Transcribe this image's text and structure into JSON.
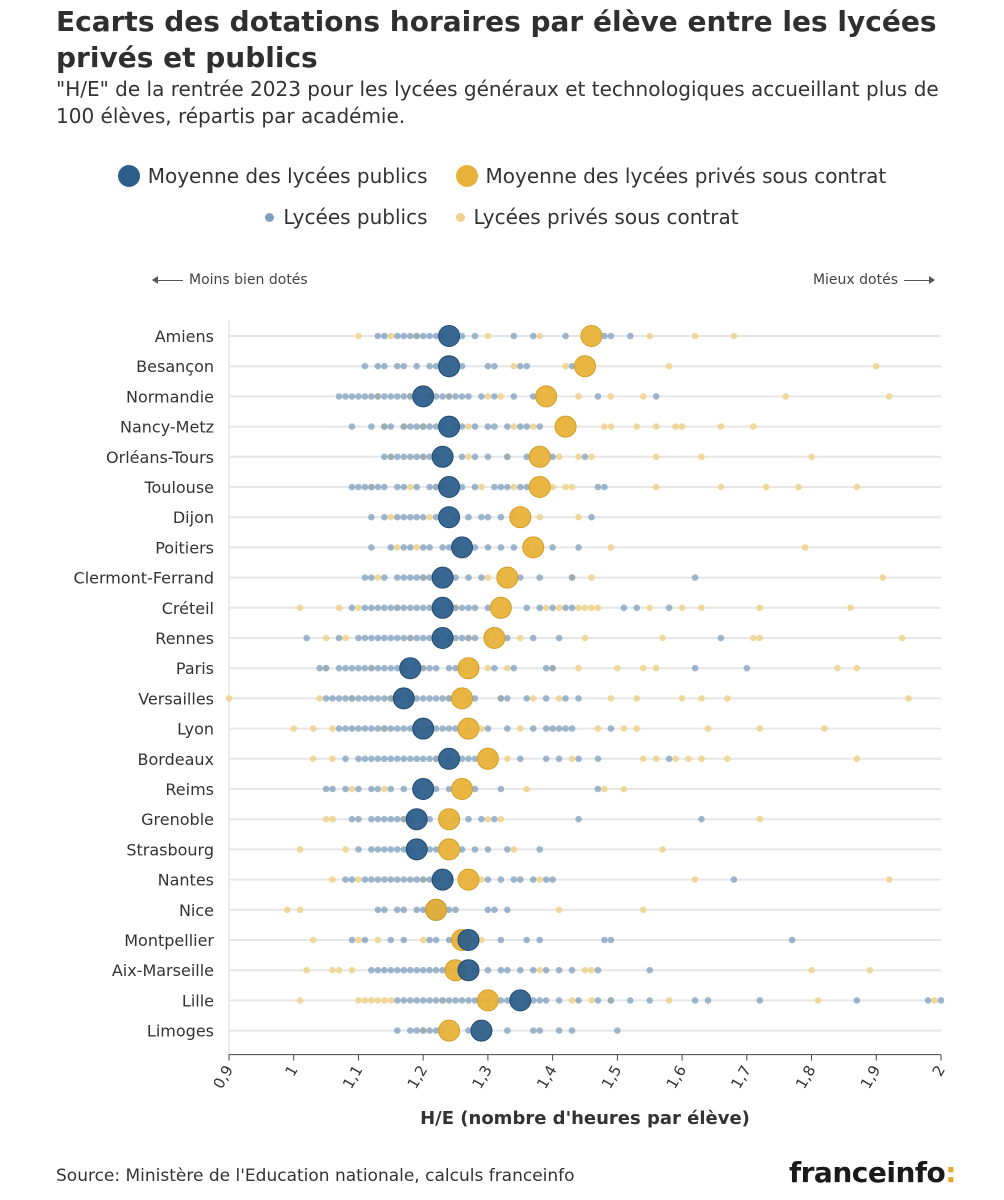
{
  "header": {
    "title": "Ecarts des dotations horaires par élève entre les lycées privés et publics",
    "subtitle": "\"H/E\" de la rentrée 2023 pour les lycées généraux et technologiques accueillant plus de 100 élèves, répartis par académie."
  },
  "legend": {
    "mean_public": "Moyenne des lycées publics",
    "mean_private": "Moyenne des lycées privés sous contrat",
    "public": "Lycées publics",
    "private": "Lycées privés sous contrat"
  },
  "annotations": {
    "left": "Moins bien dotés",
    "right": "Mieux dotés"
  },
  "colors": {
    "public_mean": "#2d5f8b",
    "private_mean": "#e8b23a",
    "public_dot": "#7f9fbe",
    "private_dot": "#efd18a",
    "gridline": "#e6e6e6"
  },
  "footer": {
    "source": "Source: Ministère de l'Education nationale, calculs franceinfo",
    "logo_text": "franceinfo",
    "logo_mark": ":"
  },
  "chart_data": {
    "type": "scatter",
    "xlabel": "H/E (nombre d'heures par élève)",
    "xlim": [
      0.9,
      2.0
    ],
    "x_ticks": [
      0.9,
      1.0,
      1.1,
      1.2,
      1.3,
      1.4,
      1.5,
      1.6,
      1.7,
      1.8,
      1.9,
      2.0
    ],
    "x_tick_labels": [
      "0,9",
      "1",
      "1,1",
      "1,2",
      "1,3",
      "1,4",
      "1,5",
      "1,6",
      "1,7",
      "1,8",
      "1,9",
      "2"
    ],
    "academies": [
      {
        "name": "Amiens",
        "mean_public": 1.24,
        "mean_private": 1.46,
        "public": [
          1.13,
          1.14,
          1.16,
          1.17,
          1.18,
          1.19,
          1.2,
          1.21,
          1.22,
          1.23,
          1.25,
          1.26,
          1.28,
          1.34,
          1.37,
          1.42,
          1.48,
          1.49,
          1.52
        ],
        "private": [
          1.1,
          1.15,
          1.19,
          1.24,
          1.3,
          1.38,
          1.45,
          1.55,
          1.62,
          1.68
        ]
      },
      {
        "name": "Besançon",
        "mean_public": 1.24,
        "mean_private": 1.45,
        "public": [
          1.11,
          1.13,
          1.14,
          1.16,
          1.17,
          1.19,
          1.21,
          1.22,
          1.26,
          1.3,
          1.31,
          1.35,
          1.36,
          1.43
        ],
        "private": [
          1.34,
          1.42,
          1.58,
          1.9
        ]
      },
      {
        "name": "Normandie",
        "mean_public": 1.2,
        "mean_private": 1.39,
        "public": [
          1.07,
          1.08,
          1.09,
          1.1,
          1.11,
          1.12,
          1.13,
          1.14,
          1.15,
          1.16,
          1.17,
          1.18,
          1.19,
          1.21,
          1.22,
          1.23,
          1.24,
          1.25,
          1.26,
          1.27,
          1.29,
          1.31,
          1.34,
          1.37,
          1.47,
          1.56
        ],
        "private": [
          1.13,
          1.18,
          1.24,
          1.3,
          1.32,
          1.38,
          1.4,
          1.44,
          1.49,
          1.54,
          1.76,
          1.92
        ]
      },
      {
        "name": "Nancy-Metz",
        "mean_public": 1.24,
        "mean_private": 1.42,
        "public": [
          1.09,
          1.12,
          1.14,
          1.15,
          1.17,
          1.18,
          1.19,
          1.2,
          1.21,
          1.22,
          1.23,
          1.25,
          1.26,
          1.28,
          1.3,
          1.31,
          1.33,
          1.35,
          1.36,
          1.38
        ],
        "private": [
          1.14,
          1.17,
          1.2,
          1.27,
          1.34,
          1.37,
          1.48,
          1.49,
          1.53,
          1.56,
          1.59,
          1.6,
          1.66,
          1.71
        ]
      },
      {
        "name": "Orléans-Tours",
        "mean_public": 1.23,
        "mean_private": 1.38,
        "public": [
          1.14,
          1.15,
          1.16,
          1.17,
          1.18,
          1.19,
          1.2,
          1.21,
          1.22,
          1.24,
          1.26,
          1.28,
          1.3,
          1.33,
          1.36,
          1.4,
          1.45
        ],
        "private": [
          1.15,
          1.2,
          1.27,
          1.33,
          1.41,
          1.44,
          1.46,
          1.56,
          1.63,
          1.8
        ]
      },
      {
        "name": "Toulouse",
        "mean_public": 1.24,
        "mean_private": 1.38,
        "public": [
          1.09,
          1.1,
          1.11,
          1.12,
          1.13,
          1.14,
          1.16,
          1.17,
          1.19,
          1.21,
          1.22,
          1.23,
          1.26,
          1.28,
          1.31,
          1.32,
          1.33,
          1.35,
          1.36,
          1.47,
          1.48
        ],
        "private": [
          1.12,
          1.18,
          1.22,
          1.29,
          1.34,
          1.37,
          1.4,
          1.42,
          1.43,
          1.56,
          1.66,
          1.73,
          1.78,
          1.87
        ]
      },
      {
        "name": "Dijon",
        "mean_public": 1.24,
        "mean_private": 1.35,
        "public": [
          1.12,
          1.14,
          1.16,
          1.17,
          1.18,
          1.19,
          1.2,
          1.22,
          1.25,
          1.27,
          1.29,
          1.3,
          1.32,
          1.34,
          1.46
        ],
        "private": [
          1.15,
          1.21,
          1.38,
          1.44
        ]
      },
      {
        "name": "Poitiers",
        "mean_public": 1.26,
        "mean_private": 1.37,
        "public": [
          1.12,
          1.15,
          1.17,
          1.18,
          1.2,
          1.21,
          1.23,
          1.24,
          1.25,
          1.28,
          1.3,
          1.32,
          1.34,
          1.36,
          1.4,
          1.44
        ],
        "private": [
          1.16,
          1.19,
          1.49,
          1.79
        ]
      },
      {
        "name": "Clermont-Ferrand",
        "mean_public": 1.23,
        "mean_private": 1.33,
        "public": [
          1.11,
          1.12,
          1.14,
          1.16,
          1.17,
          1.18,
          1.19,
          1.2,
          1.21,
          1.22,
          1.25,
          1.27,
          1.29,
          1.35,
          1.38,
          1.43,
          1.62
        ],
        "private": [
          1.13,
          1.2,
          1.3,
          1.43,
          1.46,
          1.91
        ]
      },
      {
        "name": "Créteil",
        "mean_public": 1.23,
        "mean_private": 1.32,
        "public": [
          1.09,
          1.11,
          1.12,
          1.13,
          1.14,
          1.15,
          1.16,
          1.17,
          1.18,
          1.19,
          1.2,
          1.21,
          1.22,
          1.24,
          1.25,
          1.26,
          1.27,
          1.28,
          1.3,
          1.36,
          1.38,
          1.4,
          1.42,
          1.43,
          1.51,
          1.53,
          1.58
        ],
        "private": [
          1.01,
          1.07,
          1.1,
          1.16,
          1.25,
          1.33,
          1.39,
          1.41,
          1.44,
          1.45,
          1.46,
          1.47,
          1.55,
          1.6,
          1.63,
          1.72,
          1.86
        ]
      },
      {
        "name": "Rennes",
        "mean_public": 1.23,
        "mean_private": 1.31,
        "public": [
          1.02,
          1.07,
          1.1,
          1.11,
          1.12,
          1.13,
          1.14,
          1.15,
          1.16,
          1.17,
          1.18,
          1.19,
          1.2,
          1.21,
          1.22,
          1.24,
          1.25,
          1.26,
          1.27,
          1.28,
          1.3,
          1.33,
          1.37,
          1.41,
          1.66
        ],
        "private": [
          1.05,
          1.08,
          1.18,
          1.27,
          1.35,
          1.45,
          1.57,
          1.71,
          1.72,
          1.94
        ]
      },
      {
        "name": "Paris",
        "mean_public": 1.18,
        "mean_private": 1.27,
        "public": [
          1.04,
          1.05,
          1.07,
          1.08,
          1.09,
          1.1,
          1.11,
          1.12,
          1.13,
          1.14,
          1.15,
          1.16,
          1.17,
          1.19,
          1.2,
          1.21,
          1.22,
          1.24,
          1.25,
          1.26,
          1.28,
          1.31,
          1.34,
          1.39,
          1.4,
          1.62,
          1.7
        ],
        "private": [
          1.05,
          1.12,
          1.2,
          1.3,
          1.33,
          1.4,
          1.44,
          1.5,
          1.54,
          1.56,
          1.84,
          1.87
        ]
      },
      {
        "name": "Versailles",
        "mean_public": 1.17,
        "mean_private": 1.26,
        "public": [
          1.05,
          1.06,
          1.07,
          1.08,
          1.09,
          1.1,
          1.11,
          1.12,
          1.13,
          1.14,
          1.15,
          1.16,
          1.18,
          1.19,
          1.2,
          1.21,
          1.22,
          1.23,
          1.24,
          1.27,
          1.28,
          1.32,
          1.33,
          1.36,
          1.39,
          1.42,
          1.44
        ],
        "private": [
          0.9,
          1.04,
          1.09,
          1.15,
          1.24,
          1.32,
          1.37,
          1.41,
          1.49,
          1.53,
          1.6,
          1.63,
          1.67,
          1.95
        ]
      },
      {
        "name": "Lyon",
        "mean_public": 1.2,
        "mean_private": 1.27,
        "public": [
          1.07,
          1.08,
          1.09,
          1.1,
          1.11,
          1.12,
          1.13,
          1.14,
          1.15,
          1.16,
          1.17,
          1.18,
          1.19,
          1.21,
          1.22,
          1.23,
          1.24,
          1.25,
          1.27,
          1.3,
          1.33,
          1.37,
          1.39,
          1.4,
          1.41,
          1.42,
          1.43,
          1.49
        ],
        "private": [
          1.0,
          1.03,
          1.06,
          1.14,
          1.2,
          1.29,
          1.35,
          1.47,
          1.51,
          1.53,
          1.64,
          1.72,
          1.82
        ]
      },
      {
        "name": "Bordeaux",
        "mean_public": 1.24,
        "mean_private": 1.3,
        "public": [
          1.08,
          1.1,
          1.11,
          1.12,
          1.13,
          1.14,
          1.15,
          1.16,
          1.17,
          1.18,
          1.19,
          1.2,
          1.21,
          1.22,
          1.24,
          1.26,
          1.27,
          1.28,
          1.31,
          1.35,
          1.39,
          1.41,
          1.44,
          1.47,
          1.58
        ],
        "private": [
          1.03,
          1.06,
          1.22,
          1.33,
          1.43,
          1.54,
          1.56,
          1.59,
          1.61,
          1.63,
          1.67,
          1.87
        ]
      },
      {
        "name": "Reims",
        "mean_public": 1.2,
        "mean_private": 1.26,
        "public": [
          1.05,
          1.06,
          1.08,
          1.1,
          1.12,
          1.13,
          1.15,
          1.17,
          1.19,
          1.22,
          1.24,
          1.28,
          1.32,
          1.47
        ],
        "private": [
          1.09,
          1.14,
          1.21,
          1.36,
          1.48,
          1.51
        ]
      },
      {
        "name": "Grenoble",
        "mean_public": 1.19,
        "mean_private": 1.24,
        "public": [
          1.09,
          1.1,
          1.12,
          1.13,
          1.14,
          1.15,
          1.16,
          1.17,
          1.18,
          1.2,
          1.21,
          1.23,
          1.25,
          1.27,
          1.29,
          1.31,
          1.44,
          1.63
        ],
        "private": [
          1.05,
          1.06,
          1.17,
          1.3,
          1.32,
          1.72
        ]
      },
      {
        "name": "Strasbourg",
        "mean_public": 1.19,
        "mean_private": 1.24,
        "public": [
          1.1,
          1.12,
          1.13,
          1.14,
          1.15,
          1.16,
          1.17,
          1.18,
          1.2,
          1.21,
          1.22,
          1.26,
          1.28,
          1.3,
          1.33,
          1.38
        ],
        "private": [
          1.01,
          1.08,
          1.24,
          1.34,
          1.57
        ]
      },
      {
        "name": "Nantes",
        "mean_public": 1.23,
        "mean_private": 1.27,
        "public": [
          1.08,
          1.09,
          1.11,
          1.12,
          1.13,
          1.14,
          1.15,
          1.16,
          1.17,
          1.18,
          1.19,
          1.2,
          1.21,
          1.22,
          1.24,
          1.26,
          1.28,
          1.3,
          1.32,
          1.34,
          1.35,
          1.37,
          1.39,
          1.4,
          1.68
        ],
        "private": [
          1.06,
          1.1,
          1.2,
          1.29,
          1.38,
          1.62,
          1.92
        ]
      },
      {
        "name": "Nice",
        "mean_public": 1.22,
        "mean_private": 1.22,
        "public": [
          1.13,
          1.14,
          1.16,
          1.17,
          1.19,
          1.2,
          1.21,
          1.23,
          1.24,
          1.25,
          1.3,
          1.31,
          1.33
        ],
        "private": [
          0.99,
          1.01,
          1.41,
          1.54
        ]
      },
      {
        "name": "Montpellier",
        "mean_public": 1.27,
        "mean_private": 1.26,
        "public": [
          1.09,
          1.11,
          1.15,
          1.17,
          1.21,
          1.22,
          1.24,
          1.25,
          1.28,
          1.32,
          1.36,
          1.38,
          1.48,
          1.49,
          1.77
        ],
        "private": [
          1.03,
          1.1,
          1.13,
          1.2,
          1.29
        ]
      },
      {
        "name": "Aix-Marseille",
        "mean_public": 1.27,
        "mean_private": 1.25,
        "public": [
          1.12,
          1.13,
          1.14,
          1.15,
          1.16,
          1.17,
          1.18,
          1.19,
          1.2,
          1.21,
          1.22,
          1.23,
          1.24,
          1.26,
          1.28,
          1.3,
          1.32,
          1.33,
          1.35,
          1.37,
          1.39,
          1.41,
          1.43,
          1.47,
          1.55
        ],
        "private": [
          1.02,
          1.06,
          1.07,
          1.09,
          1.25,
          1.38,
          1.45,
          1.46,
          1.8,
          1.89
        ]
      },
      {
        "name": "Lille",
        "mean_public": 1.35,
        "mean_private": 1.3,
        "public": [
          1.16,
          1.17,
          1.18,
          1.19,
          1.2,
          1.21,
          1.22,
          1.23,
          1.24,
          1.25,
          1.26,
          1.27,
          1.28,
          1.29,
          1.3,
          1.31,
          1.32,
          1.33,
          1.34,
          1.36,
          1.37,
          1.38,
          1.39,
          1.41,
          1.44,
          1.47,
          1.49,
          1.52,
          1.55,
          1.62,
          1.64,
          1.72,
          1.87,
          1.98,
          2.0
        ],
        "private": [
          1.01,
          1.1,
          1.11,
          1.12,
          1.13,
          1.14,
          1.15,
          1.23,
          1.3,
          1.43,
          1.46,
          1.49,
          1.58,
          1.81,
          1.99
        ]
      },
      {
        "name": "Limoges",
        "mean_public": 1.29,
        "mean_private": 1.24,
        "public": [
          1.16,
          1.18,
          1.19,
          1.2,
          1.21,
          1.22,
          1.23,
          1.27,
          1.33,
          1.37,
          1.38,
          1.41,
          1.43,
          1.5
        ],
        "private": [
          1.2,
          1.25,
          1.28
        ]
      }
    ]
  }
}
